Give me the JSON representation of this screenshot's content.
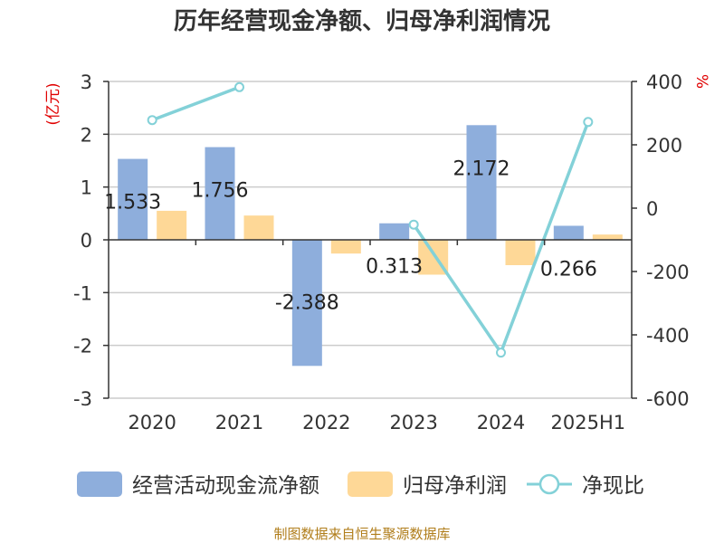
{
  "title": "历年经营现金净额、归母净利润情况",
  "source": "制图数据来自恒生聚源数据库",
  "chart_data": {
    "type": "bar",
    "categories": [
      "2020",
      "2021",
      "2022",
      "2023",
      "2024",
      "2025H1"
    ],
    "series": [
      {
        "name": "经营活动现金流净额",
        "kind": "bar",
        "axis": "left",
        "color": "#8eaedc",
        "values": [
          1.533,
          1.756,
          -2.388,
          0.313,
          2.172,
          0.266
        ],
        "labels": [
          "1.533",
          "1.756",
          "-2.388",
          "0.313",
          "2.172",
          "0.266"
        ]
      },
      {
        "name": "归母净利润",
        "kind": "bar",
        "axis": "left",
        "color": "#fed897",
        "values": [
          0.55,
          0.46,
          -0.26,
          -0.66,
          -0.48,
          0.1
        ]
      },
      {
        "name": "净现比",
        "kind": "line",
        "axis": "right",
        "color": "#83d1d8",
        "values": [
          278,
          382,
          null,
          -52,
          -456,
          272
        ]
      }
    ],
    "left_axis": {
      "unit": "(亿元)",
      "min": -3,
      "max": 3,
      "ticks": [
        3,
        2,
        1,
        0,
        -1,
        -2,
        -3
      ]
    },
    "right_axis": {
      "unit": "%",
      "min": -600,
      "max": 400,
      "ticks": [
        400,
        200,
        0,
        -200,
        -400,
        -600
      ]
    },
    "grid": true,
    "legend_position": "bottom"
  }
}
